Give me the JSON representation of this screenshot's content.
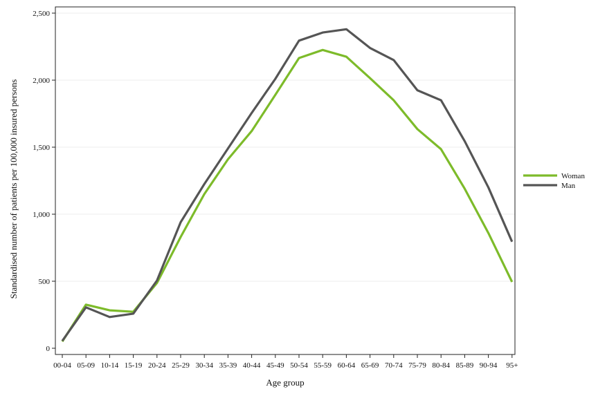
{
  "chart_data": {
    "type": "line",
    "xlabel": "Age group",
    "ylabel": "Standardised number of patients per 100,000 insured persons",
    "categories": [
      "00-04",
      "05-09",
      "10-14",
      "15-19",
      "20-24",
      "25-29",
      "30-34",
      "35-39",
      "40-44",
      "45-49",
      "50-54",
      "55-59",
      "60-64",
      "65-69",
      "70-74",
      "75-79",
      "80-84",
      "85-89",
      "90-94",
      "95+"
    ],
    "ylim": [
      0,
      2500
    ],
    "yticks": [
      0,
      500,
      1000,
      1500,
      2000,
      2500
    ],
    "ytick_labels": [
      "0",
      "500",
      "1,000",
      "1,500",
      "2,000",
      "2,500"
    ],
    "grid": true,
    "legend_position": "right",
    "series": [
      {
        "name": "Woman",
        "color": "#7dbb2a",
        "values": [
          50,
          325,
          283,
          272,
          487,
          830,
          1150,
          1410,
          1620,
          1890,
          2165,
          2225,
          2175,
          2015,
          1850,
          1635,
          1485,
          1190,
          860,
          495
        ]
      },
      {
        "name": "Man",
        "color": "#555555",
        "values": [
          55,
          305,
          233,
          258,
          505,
          940,
          1225,
          1490,
          1755,
          2010,
          2295,
          2355,
          2380,
          2240,
          2150,
          1925,
          1850,
          1545,
          1200,
          795
        ]
      }
    ]
  }
}
